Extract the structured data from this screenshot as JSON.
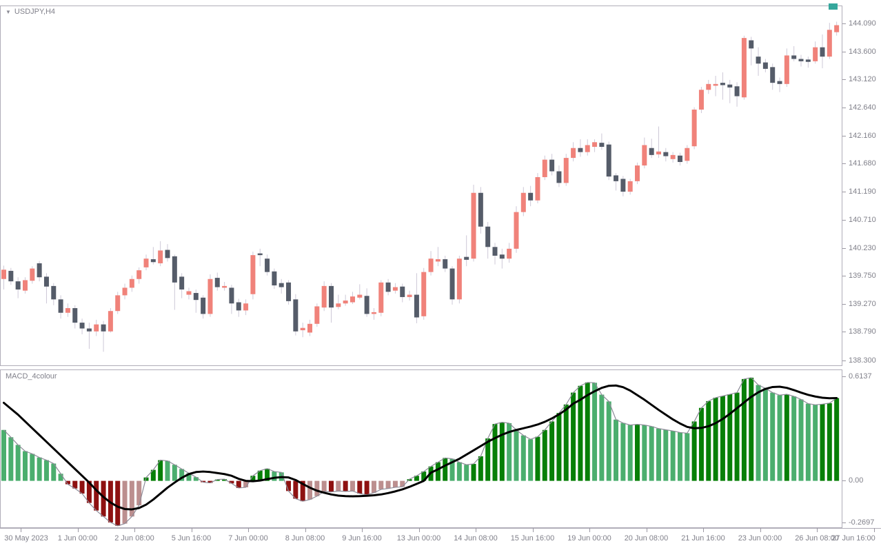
{
  "window": {
    "symbol_label": "USDJPY,H4",
    "indicator_label": "MACD_4colour",
    "dropdown_glyph": "▼"
  },
  "price_axis": {
    "labels": [
      "144.090",
      "143.600",
      "143.120",
      "142.640",
      "142.160",
      "141.680",
      "141.190",
      "140.710",
      "140.230",
      "139.750",
      "139.270",
      "138.790",
      "138.300"
    ],
    "values": [
      144.09,
      143.6,
      143.12,
      142.64,
      142.16,
      141.68,
      141.19,
      140.71,
      140.23,
      139.75,
      139.27,
      138.79,
      138.3
    ]
  },
  "macd_axis": {
    "labels": [
      "0.6137",
      "0.00",
      "-0.2697"
    ],
    "values": [
      0.6137,
      0.0,
      -0.2697
    ]
  },
  "time_axis": {
    "labels": [
      "30 May 2023",
      "1 Jun 00:00",
      "2 Jun 08:00",
      "5 Jun 16:00",
      "7 Jun 00:00",
      "8 Jun 08:00",
      "9 Jun 16:00",
      "13 Jun 00:00",
      "14 Jun 08:00",
      "15 Jun 16:00",
      "19 Jun 00:00",
      "20 Jun 08:00",
      "21 Jun 16:00",
      "23 Jun 00:00",
      "26 Jun 08:00",
      "27 Jun 16:00"
    ]
  },
  "colors": {
    "bull_candle": "#f0827a",
    "bear_candle": "#555c69",
    "wick": "#cdc8d7",
    "macd_up_rising": "#077f07",
    "macd_up_falling": "#4bae6e",
    "macd_down_falling": "#8e1111",
    "macd_down_rising": "#bc8f8f",
    "macd_line": "#8c8a97",
    "signal_line": "#000000",
    "panel_border": "#b0adb8",
    "axis_text": "#80808a",
    "end_marker": "#35a79c",
    "background": "#ffffff"
  },
  "chart_data": [
    {
      "type": "candlestick",
      "symbol": "USDJPY",
      "timeframe": "H4",
      "title": "USDJPY,H4",
      "ylim": [
        138.3,
        144.09
      ],
      "grid": false,
      "candles_ohlc": [
        [
          139.7,
          139.93,
          139.52,
          139.86
        ],
        [
          139.84,
          139.89,
          139.6,
          139.66
        ],
        [
          139.66,
          139.73,
          139.37,
          139.52
        ],
        [
          139.5,
          139.73,
          139.45,
          139.68
        ],
        [
          139.67,
          139.92,
          139.62,
          139.88
        ],
        [
          139.97,
          140.01,
          139.66,
          139.73
        ],
        [
          139.74,
          139.8,
          139.28,
          139.57
        ],
        [
          139.58,
          139.63,
          139.25,
          139.35
        ],
        [
          139.35,
          139.42,
          139.02,
          139.12
        ],
        [
          139.12,
          139.28,
          139.05,
          139.2
        ],
        [
          139.2,
          139.25,
          138.85,
          138.95
        ],
        [
          138.95,
          139.02,
          138.75,
          138.85
        ],
        [
          138.85,
          138.95,
          138.5,
          138.8
        ],
        [
          138.8,
          139.0,
          138.72,
          138.92
        ],
        [
          138.92,
          138.98,
          138.45,
          138.8
        ],
        [
          138.8,
          139.2,
          138.78,
          139.15
        ],
        [
          139.15,
          139.48,
          139.1,
          139.42
        ],
        [
          139.42,
          139.62,
          139.35,
          139.55
        ],
        [
          139.55,
          139.76,
          139.48,
          139.7
        ],
        [
          139.7,
          139.9,
          139.62,
          139.85
        ],
        [
          139.9,
          140.12,
          139.85,
          140.05
        ],
        [
          140.04,
          140.25,
          139.95,
          139.99
        ],
        [
          139.97,
          140.35,
          139.92,
          140.19
        ],
        [
          140.2,
          140.3,
          140.0,
          140.06
        ],
        [
          140.09,
          140.12,
          139.17,
          139.64
        ],
        [
          139.74,
          139.8,
          139.37,
          139.52
        ],
        [
          139.43,
          139.55,
          139.35,
          139.49
        ],
        [
          139.46,
          139.52,
          139.12,
          139.34
        ],
        [
          139.38,
          139.42,
          139.02,
          139.1
        ],
        [
          139.1,
          139.78,
          139.05,
          139.7
        ],
        [
          139.72,
          139.81,
          139.5,
          139.56
        ],
        [
          139.55,
          139.65,
          139.5,
          139.58
        ],
        [
          139.55,
          139.6,
          139.1,
          139.28
        ],
        [
          139.3,
          139.36,
          139.05,
          139.16
        ],
        [
          139.16,
          139.35,
          139.08,
          139.28
        ],
        [
          139.44,
          140.17,
          139.35,
          140.11
        ],
        [
          140.14,
          140.22,
          139.92,
          140.11
        ],
        [
          140.05,
          140.12,
          139.76,
          139.82
        ],
        [
          139.83,
          139.88,
          139.53,
          139.59
        ],
        [
          139.63,
          139.7,
          139.45,
          139.56
        ],
        [
          139.64,
          139.68,
          139.26,
          139.32
        ],
        [
          139.35,
          139.44,
          138.73,
          138.8
        ],
        [
          138.82,
          138.95,
          138.7,
          138.86
        ],
        [
          138.78,
          139.0,
          138.72,
          138.93
        ],
        [
          138.93,
          139.28,
          138.88,
          139.23
        ],
        [
          139.21,
          139.66,
          139.15,
          139.58
        ],
        [
          139.58,
          139.63,
          138.95,
          139.21
        ],
        [
          139.22,
          139.43,
          139.18,
          139.28
        ],
        [
          139.28,
          139.43,
          139.24,
          139.33
        ],
        [
          139.3,
          139.48,
          139.27,
          139.4
        ],
        [
          139.38,
          139.61,
          139.35,
          139.43
        ],
        [
          139.41,
          139.54,
          139.05,
          139.1
        ],
        [
          139.1,
          139.2,
          139.0,
          139.13
        ],
        [
          139.12,
          139.68,
          139.06,
          139.64
        ],
        [
          139.64,
          139.7,
          139.42,
          139.48
        ],
        [
          139.5,
          139.63,
          139.45,
          139.56
        ],
        [
          139.57,
          139.62,
          139.3,
          139.39
        ],
        [
          139.39,
          139.5,
          139.33,
          139.43
        ],
        [
          139.43,
          139.8,
          138.94,
          139.04
        ],
        [
          139.06,
          139.89,
          139.0,
          139.82
        ],
        [
          139.82,
          140.18,
          139.76,
          140.05
        ],
        [
          140.0,
          140.25,
          139.92,
          140.04
        ],
        [
          140.04,
          140.1,
          139.82,
          139.88
        ],
        [
          139.88,
          139.92,
          139.26,
          139.35
        ],
        [
          139.35,
          140.1,
          139.28,
          140.05
        ],
        [
          140.08,
          140.45,
          139.92,
          140.03
        ],
        [
          140.05,
          141.32,
          140.0,
          141.18
        ],
        [
          141.18,
          141.28,
          140.48,
          140.6
        ],
        [
          140.6,
          140.68,
          140.05,
          140.25
        ],
        [
          140.25,
          140.32,
          139.95,
          140.1
        ],
        [
          140.12,
          140.22,
          139.88,
          140.05
        ],
        [
          140.05,
          140.32,
          139.98,
          140.22
        ],
        [
          140.22,
          140.95,
          140.15,
          140.85
        ],
        [
          140.85,
          141.28,
          140.78,
          141.18
        ],
        [
          141.18,
          141.3,
          140.95,
          141.05
        ],
        [
          141.05,
          141.52,
          141.0,
          141.45
        ],
        [
          141.45,
          141.82,
          141.4,
          141.75
        ],
        [
          141.75,
          141.85,
          141.48,
          141.55
        ],
        [
          141.55,
          141.65,
          141.28,
          141.35
        ],
        [
          141.35,
          141.85,
          141.3,
          141.78
        ],
        [
          141.78,
          142.05,
          141.72,
          141.95
        ],
        [
          141.95,
          142.1,
          141.8,
          141.88
        ],
        [
          141.88,
          142.1,
          141.82,
          142.0
        ],
        [
          141.97,
          142.1,
          141.88,
          142.05
        ],
        [
          142.04,
          142.2,
          141.92,
          141.97
        ],
        [
          142.01,
          142.06,
          141.4,
          141.46
        ],
        [
          141.48,
          141.52,
          141.22,
          141.38
        ],
        [
          141.42,
          141.47,
          141.12,
          141.2
        ],
        [
          141.2,
          141.42,
          141.15,
          141.38
        ],
        [
          141.38,
          141.7,
          141.33,
          141.65
        ],
        [
          141.65,
          142.13,
          141.6,
          142.0
        ],
        [
          141.95,
          142.11,
          141.78,
          141.83
        ],
        [
          141.84,
          142.32,
          141.78,
          141.89
        ],
        [
          141.88,
          141.95,
          141.72,
          141.81
        ],
        [
          141.76,
          141.88,
          141.7,
          141.83
        ],
        [
          141.82,
          141.87,
          141.65,
          141.71
        ],
        [
          141.73,
          142.0,
          141.68,
          141.95
        ],
        [
          141.98,
          142.65,
          141.93,
          142.61
        ],
        [
          142.61,
          143.0,
          142.55,
          142.95
        ],
        [
          142.95,
          143.12,
          142.88,
          143.05
        ],
        [
          143.02,
          143.19,
          142.84,
          143.05
        ],
        [
          143.07,
          143.25,
          142.78,
          143.03
        ],
        [
          143.04,
          143.12,
          142.72,
          142.99
        ],
        [
          143.01,
          143.08,
          142.66,
          142.84
        ],
        [
          142.82,
          143.88,
          142.78,
          143.84
        ],
        [
          143.8,
          143.86,
          143.37,
          143.66
        ],
        [
          143.52,
          143.68,
          143.19,
          143.4
        ],
        [
          143.42,
          143.48,
          143.25,
          143.31
        ],
        [
          143.34,
          143.4,
          142.95,
          143.07
        ],
        [
          143.1,
          143.16,
          142.91,
          143.05
        ],
        [
          143.05,
          143.66,
          143.0,
          143.54
        ],
        [
          143.54,
          143.7,
          143.44,
          143.48
        ],
        [
          143.48,
          143.55,
          143.35,
          143.44
        ],
        [
          143.47,
          143.52,
          143.33,
          143.43
        ],
        [
          143.44,
          143.78,
          143.4,
          143.68
        ],
        [
          143.68,
          143.9,
          143.32,
          143.52
        ],
        [
          143.52,
          144.1,
          143.48,
          143.98
        ],
        [
          143.94,
          144.12,
          143.88,
          144.06
        ]
      ]
    },
    {
      "type": "bar",
      "name": "MACD_4colour",
      "ylim": [
        -0.2697,
        0.6137
      ],
      "histogram": [
        0.3,
        0.257,
        0.212,
        0.175,
        0.159,
        0.138,
        0.122,
        0.102,
        0.042,
        -0.02,
        -0.045,
        -0.075,
        -0.13,
        -0.175,
        -0.21,
        -0.245,
        -0.265,
        -0.252,
        -0.21,
        -0.144,
        0.02,
        0.065,
        0.122,
        0.118,
        0.095,
        0.07,
        0.045,
        0.022,
        -0.008,
        -0.012,
        0.008,
        0.01,
        -0.015,
        -0.042,
        -0.038,
        0.03,
        0.06,
        0.072,
        0.055,
        0.05,
        -0.06,
        -0.105,
        -0.12,
        -0.11,
        -0.09,
        -0.062,
        -0.065,
        -0.06,
        -0.062,
        -0.06,
        -0.075,
        -0.082,
        -0.07,
        -0.05,
        -0.045,
        -0.038,
        -0.035,
        0.01,
        0.03,
        0.055,
        0.085,
        0.11,
        0.135,
        0.13,
        0.11,
        0.095,
        0.1,
        0.145,
        0.25,
        0.335,
        0.345,
        0.34,
        0.3,
        0.268,
        0.245,
        0.26,
        0.3,
        0.35,
        0.4,
        0.45,
        0.52,
        0.56,
        0.58,
        0.578,
        0.508,
        0.468,
        0.361,
        0.341,
        0.329,
        0.333,
        0.329,
        0.321,
        0.308,
        0.301,
        0.294,
        0.285,
        0.281,
        0.35,
        0.43,
        0.47,
        0.49,
        0.5,
        0.51,
        0.52,
        0.6,
        0.608,
        0.565,
        0.545,
        0.52,
        0.505,
        0.51,
        0.498,
        0.48,
        0.455,
        0.448,
        0.452,
        0.458,
        0.488
      ],
      "signal": [
        0.46,
        0.425,
        0.39,
        0.35,
        0.31,
        0.27,
        0.23,
        0.19,
        0.15,
        0.11,
        0.07,
        0.03,
        -0.01,
        -0.055,
        -0.095,
        -0.128,
        -0.152,
        -0.166,
        -0.168,
        -0.16,
        -0.14,
        -0.11,
        -0.075,
        -0.04,
        -0.01,
        0.018,
        0.04,
        0.052,
        0.055,
        0.052,
        0.046,
        0.04,
        0.03,
        0.012,
        0.0,
        -0.002,
        0.002,
        0.01,
        0.018,
        0.022,
        0.02,
        0.005,
        -0.018,
        -0.04,
        -0.058,
        -0.07,
        -0.08,
        -0.087,
        -0.09,
        -0.091,
        -0.09,
        -0.088,
        -0.085,
        -0.08,
        -0.072,
        -0.062,
        -0.05,
        -0.035,
        -0.018,
        0.0,
        0.048,
        0.068,
        0.09,
        0.11,
        0.13,
        0.155,
        0.18,
        0.205,
        0.23,
        0.252,
        0.272,
        0.288,
        0.3,
        0.31,
        0.32,
        0.332,
        0.348,
        0.368,
        0.392,
        0.42,
        0.455,
        0.478,
        0.505,
        0.528,
        0.548,
        0.56,
        0.562,
        0.552,
        0.532,
        0.505,
        0.478,
        0.448,
        0.418,
        0.39,
        0.362,
        0.338,
        0.318,
        0.31,
        0.312,
        0.322,
        0.34,
        0.365,
        0.395,
        0.428,
        0.462,
        0.495,
        0.522,
        0.542,
        0.553,
        0.555,
        0.548,
        0.535,
        0.52,
        0.507,
        0.497,
        0.49,
        0.487,
        0.488
      ]
    }
  ]
}
